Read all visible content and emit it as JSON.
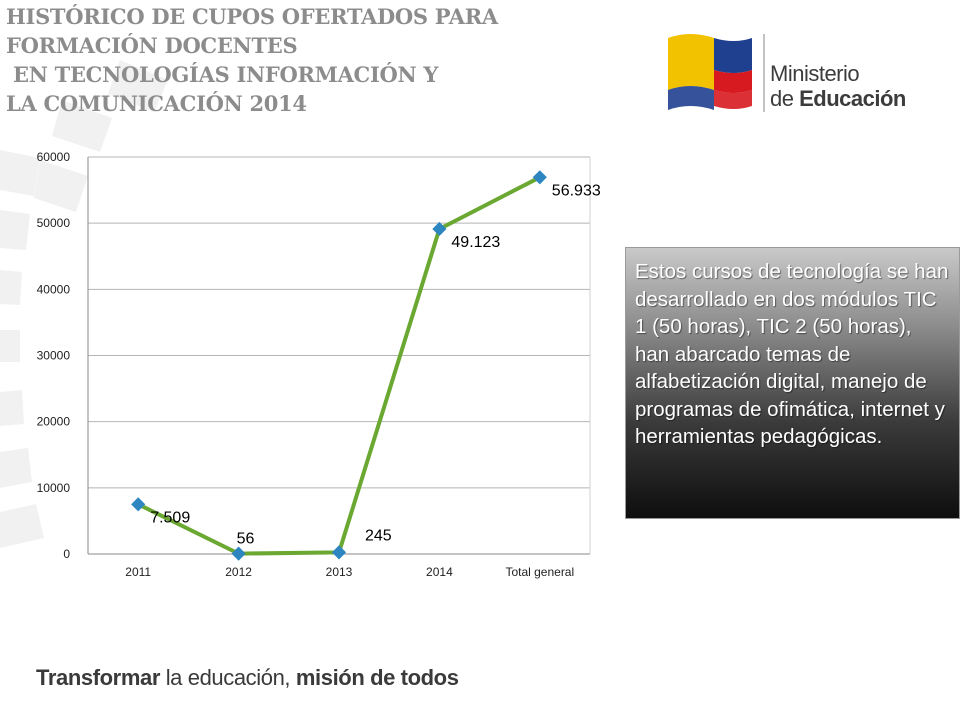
{
  "title": {
    "lines": [
      "HISTÓRICO DE CUPOS OFERTADOS PARA",
      "FORMACIÓN DOCENTES",
      " EN TECNOLOGÍAS INFORMACIÓN Y",
      "LA COMUNICACIÓN 2014"
    ]
  },
  "logo": {
    "line1": "Ministerio",
    "line2_prefix": "de ",
    "line2_bold": "Educación",
    "colors": {
      "yellow": "#f2c200",
      "blue": "#1f3f8f",
      "red": "#d71920"
    }
  },
  "chart_data": {
    "type": "line",
    "categories": [
      "2011",
      "2012",
      "2013",
      "2014",
      "Total general"
    ],
    "series": [
      {
        "values": [
          7509,
          56,
          245,
          49123,
          56933
        ],
        "data_labels": [
          "7.509",
          "56",
          "245",
          "49.123",
          "56.933"
        ]
      }
    ],
    "ylim": [
      0,
      60000
    ],
    "yticks": [
      0,
      10000,
      20000,
      30000,
      40000,
      50000,
      60000
    ],
    "ytick_labels": [
      "0",
      "10000",
      "20000",
      "30000",
      "40000",
      "50000",
      "60000"
    ],
    "grid": true,
    "line_color": "#6aa832",
    "marker_color": "#2e86c1"
  },
  "infobox": {
    "text": "Estos cursos de tecnología se han desarrollado en dos módulos TIC 1 (50 horas), TIC 2 (50 horas), han abarcado temas de alfabetización digital, manejo de programas de ofimática, internet y herramientas pedagógicas."
  },
  "slogan": {
    "part1": "Transformar",
    "part2": " la educación, ",
    "part3": "misión de todos"
  }
}
